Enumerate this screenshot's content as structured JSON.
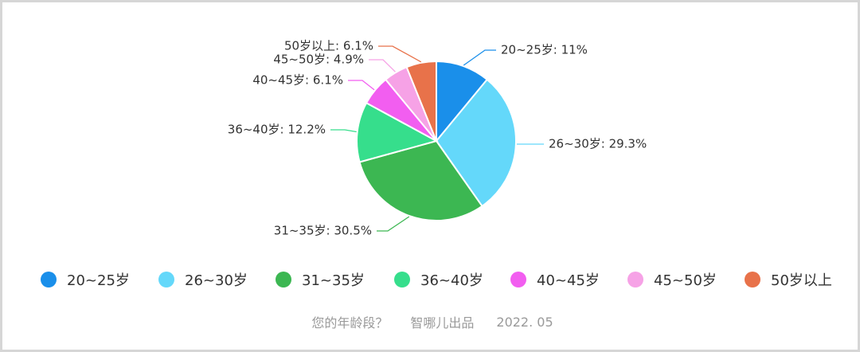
{
  "chart_data": {
    "type": "pie",
    "categories": [
      "20~25岁",
      "26~30岁",
      "31~35岁",
      "36~40岁",
      "40~45岁",
      "45~50岁",
      "50岁以上"
    ],
    "values": [
      11,
      29.3,
      30.5,
      12.2,
      6.1,
      4.9,
      6.1
    ],
    "labels": [
      "20~25岁: 11%",
      "26~30岁: 29.3%",
      "31~35岁: 30.5%",
      "36~40岁: 12.2%",
      "40~45岁: 6.1%",
      "45~50岁: 4.9%",
      "50岁以上: 6.1%"
    ],
    "colors": [
      "#1a8fea",
      "#64d8fa",
      "#3cb752",
      "#36de8c",
      "#f25ef0",
      "#f6a2e6",
      "#e8724a"
    ],
    "legend_position": "bottom"
  },
  "footer": {
    "question": "您的年龄段？",
    "source": "智哪儿出品",
    "date": "2022. 05"
  }
}
